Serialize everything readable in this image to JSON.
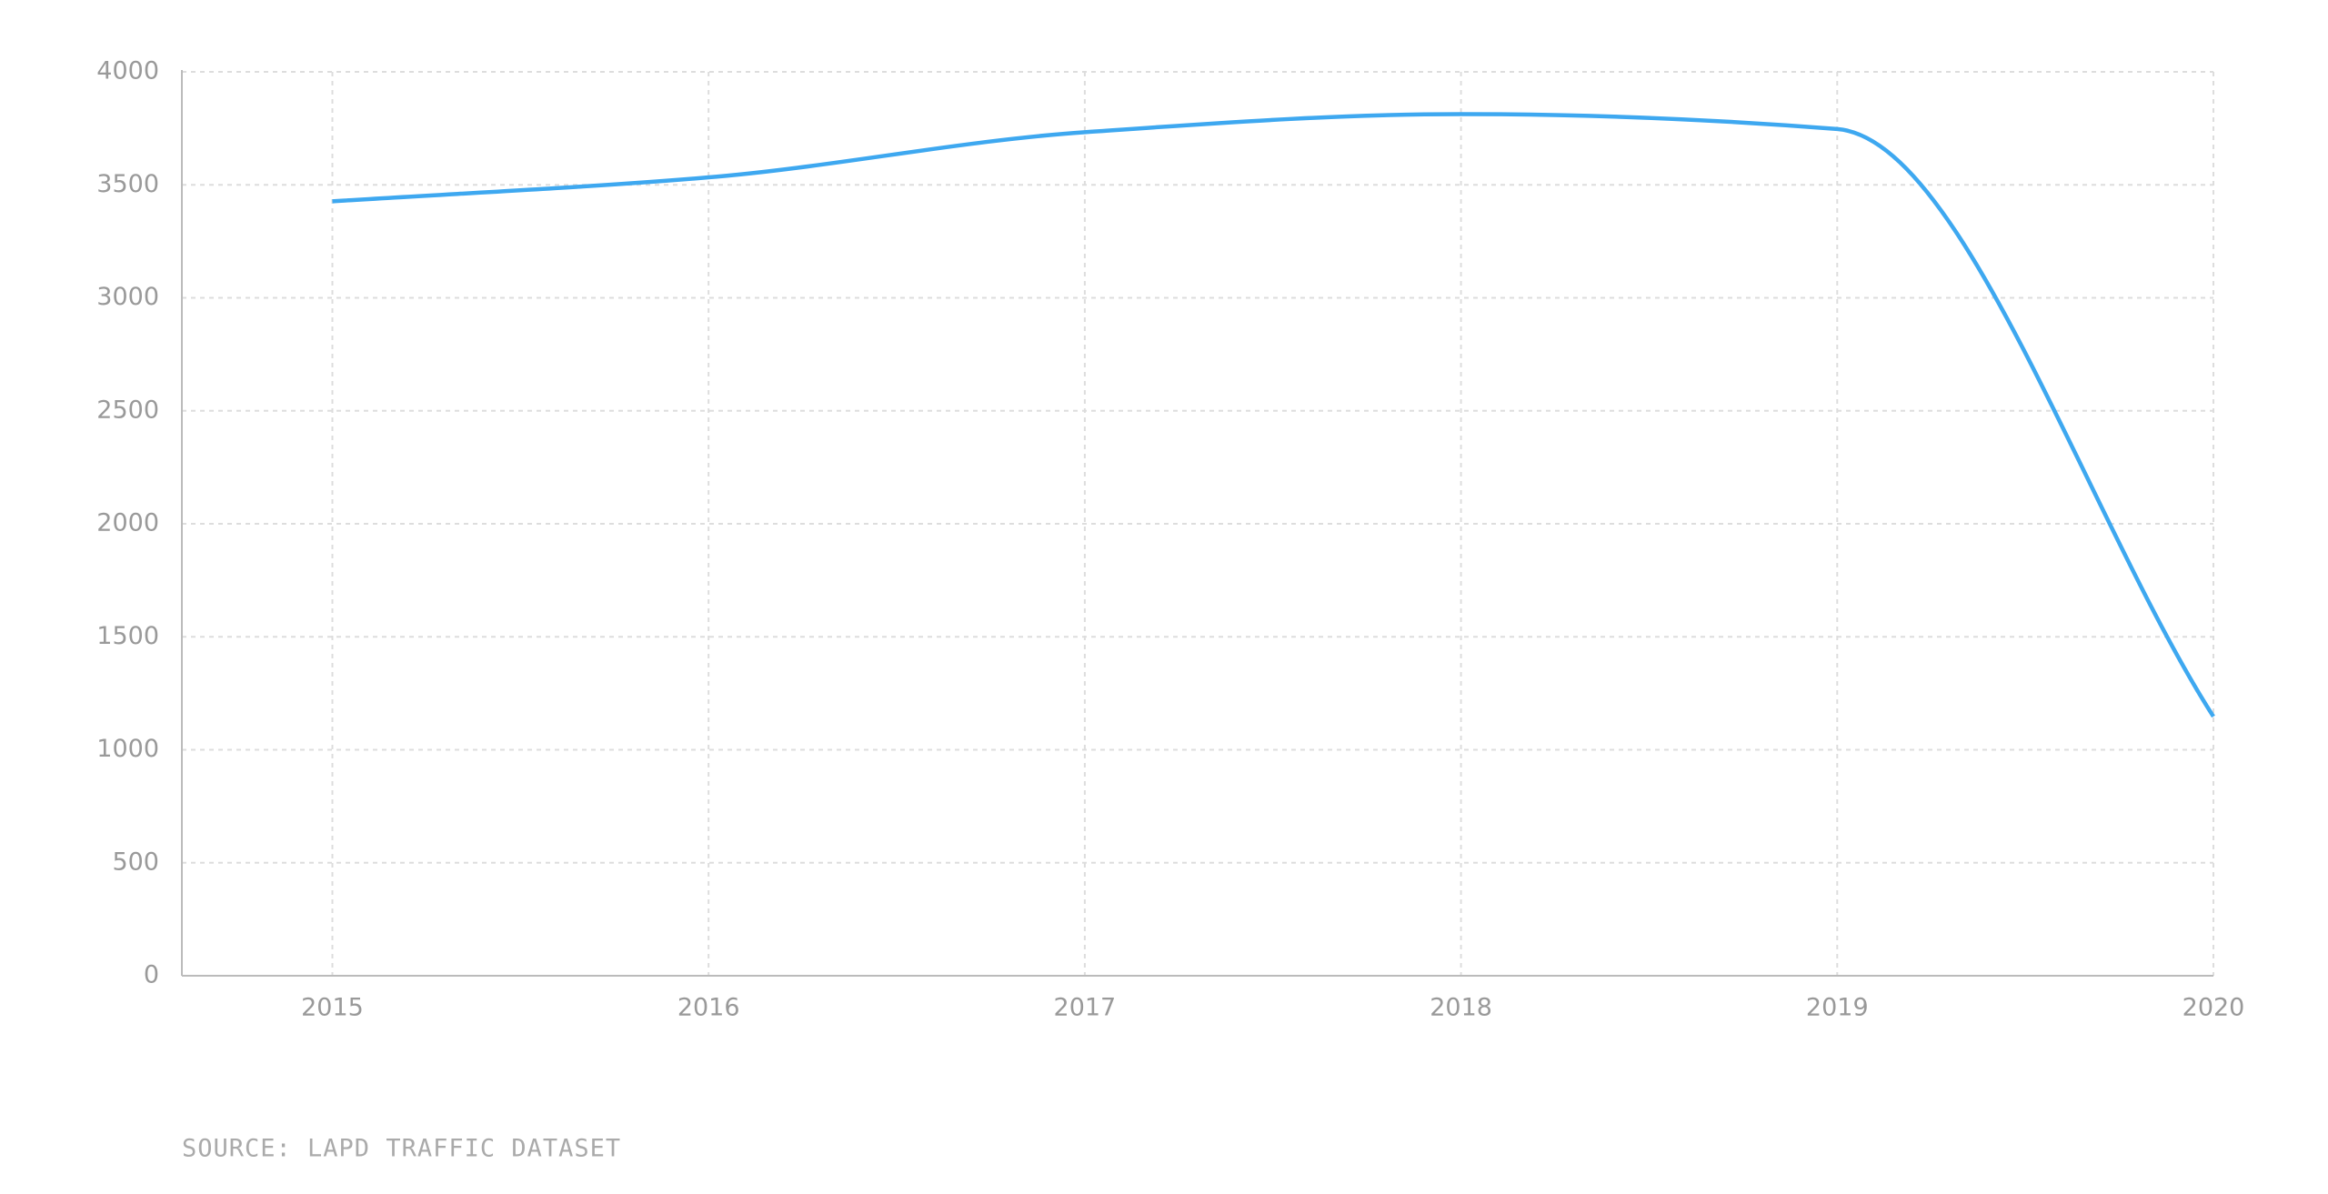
{
  "chart_data": {
    "type": "line",
    "x": [
      2015,
      2016,
      2017,
      2018,
      2019,
      2020
    ],
    "series": [
      {
        "color": "#3ea8f0",
        "values": [
          3427,
          3533,
          3733,
          3813,
          3747,
          1147
        ]
      }
    ],
    "xlim": [
      2014.6,
      2020
    ],
    "xticks": [
      2015,
      2016,
      2017,
      2018,
      2019,
      2020
    ],
    "ylim": [
      0,
      4000
    ],
    "yticks": [
      0,
      500,
      1000,
      1500,
      2000,
      2500,
      3000,
      3500,
      4000
    ],
    "grid": true,
    "smooth": true,
    "source": "SOURCE: LAPD TRAFFIC DATASET"
  }
}
